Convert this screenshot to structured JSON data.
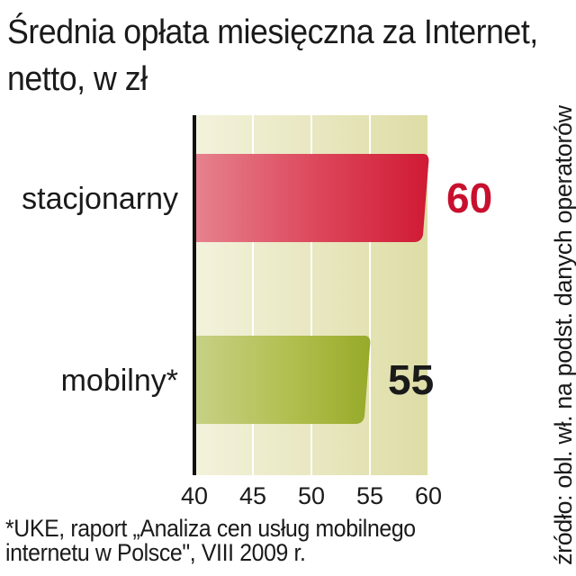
{
  "title_lines": [
    "Średnia opłata miesięczna za Internet,",
    "netto, w zł"
  ],
  "source": "źródło: obl. wł. na podst. danych operatorów",
  "footnote_lines": [
    "*UKE, raport „Analiza cen usług mobilnego",
    "internetu w Polsce\", VIII 2009 r."
  ],
  "colors": {
    "stacjonarny": "#d8263e",
    "mobilny": "#9aad2e",
    "background": "#e9e8bd",
    "value_stacjonarny": "#c8102e",
    "value_mobilny": "#1a1a1a"
  },
  "chart_data": {
    "type": "bar",
    "orientation": "horizontal",
    "title": "Średnia opłata miesięczna za Internet, netto, w zł",
    "categories": [
      "stacjonarny",
      "mobilny*"
    ],
    "values": [
      60,
      55
    ],
    "value_labels": [
      "60",
      "55"
    ],
    "xlim": [
      40,
      60
    ],
    "xticks": [
      "40",
      "45",
      "50",
      "55",
      "60"
    ],
    "grid": true,
    "legend": "none"
  }
}
